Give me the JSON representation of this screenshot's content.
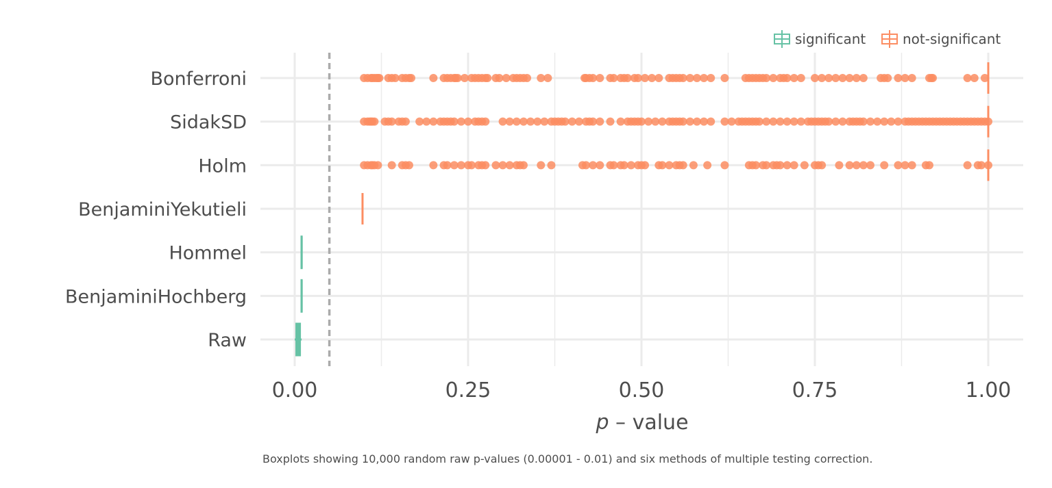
{
  "chart_data": {
    "type": "boxplot",
    "xlabel_italic": "p",
    "xlabel_rest": " – value",
    "xlim": [
      0,
      1
    ],
    "x_ticks": [
      {
        "value": 0,
        "label": "0.00"
      },
      {
        "value": 0.25,
        "label": "0.25"
      },
      {
        "value": 0.5,
        "label": "0.50"
      },
      {
        "value": 0.75,
        "label": "0.75"
      },
      {
        "value": 1,
        "label": "1.00"
      }
    ],
    "minor_ticks": [
      0.125,
      0.375,
      0.625,
      0.875
    ],
    "threshold": 0.05,
    "caption": "Boxplots showing 10,000 random raw p-values (0.00001 - 0.01) and six methods of multiple testing correction.",
    "legend": {
      "position": "top-right",
      "entries": [
        {
          "label": "significant",
          "color": "#66c2a5"
        },
        {
          "label": "not-significant",
          "color": "#fc8d62"
        }
      ]
    },
    "categories": [
      "Raw",
      "BenjaminiHochberg",
      "Hommel",
      "BenjaminiYekutieli",
      "Holm",
      "SidakSD",
      "Bonferroni"
    ],
    "boxes": [
      {
        "category": "Raw",
        "group": "significant",
        "q1": 0.0025,
        "median": 0.005,
        "q3": 0.0075,
        "whisker_low": 1e-05,
        "whisker_high": 0.01
      },
      {
        "category": "BenjaminiHochberg",
        "group": "significant",
        "q1": 0.0099,
        "median": 0.01,
        "q3": 0.01,
        "whisker_low": 0.0099,
        "whisker_high": 0.01
      },
      {
        "category": "Hommel",
        "group": "significant",
        "q1": 0.0099,
        "median": 0.01,
        "q3": 0.01,
        "whisker_low": 0.0099,
        "whisker_high": 0.01
      },
      {
        "category": "BenjaminiYekutieli",
        "group": "not-significant",
        "q1": 0.0978,
        "median": 0.0978,
        "q3": 0.0978,
        "whisker_low": 0.0978,
        "whisker_high": 0.0978
      },
      {
        "category": "Holm",
        "group": "not-significant",
        "q1": 1,
        "median": 1,
        "q3": 1,
        "whisker_low": 1,
        "whisker_high": 1
      },
      {
        "category": "SidakSD",
        "group": "not-significant",
        "q1": 1,
        "median": 1,
        "q3": 1,
        "whisker_low": 1,
        "whisker_high": 1
      },
      {
        "category": "Bonferroni",
        "group": "not-significant",
        "q1": 1,
        "median": 1,
        "q3": 1,
        "whisker_low": 1,
        "whisker_high": 1
      }
    ],
    "outliers": [
      {
        "category": "Bonferroni",
        "color": "#fc8d62",
        "values": [
          0.1,
          0.105,
          0.11,
          0.112,
          0.115,
          0.118,
          0.12,
          0.122,
          0.135,
          0.14,
          0.145,
          0.155,
          0.16,
          0.165,
          0.168,
          0.2,
          0.215,
          0.22,
          0.225,
          0.23,
          0.232,
          0.235,
          0.245,
          0.255,
          0.26,
          0.265,
          0.27,
          0.275,
          0.278,
          0.29,
          0.295,
          0.305,
          0.315,
          0.32,
          0.325,
          0.33,
          0.335,
          0.355,
          0.365,
          0.418,
          0.42,
          0.425,
          0.43,
          0.44,
          0.455,
          0.46,
          0.47,
          0.475,
          0.48,
          0.49,
          0.495,
          0.505,
          0.515,
          0.525,
          0.54,
          0.545,
          0.55,
          0.555,
          0.56,
          0.57,
          0.58,
          0.59,
          0.6,
          0.62,
          0.65,
          0.655,
          0.66,
          0.665,
          0.67,
          0.675,
          0.68,
          0.69,
          0.7,
          0.705,
          0.71,
          0.72,
          0.73,
          0.75,
          0.76,
          0.77,
          0.78,
          0.79,
          0.8,
          0.81,
          0.82,
          0.845,
          0.85,
          0.855,
          0.87,
          0.88,
          0.89,
          0.915,
          0.918,
          0.92,
          0.97,
          0.98,
          0.995
        ]
      },
      {
        "category": "SidakSD",
        "color": "#fc8d62",
        "values": [
          0.1,
          0.105,
          0.108,
          0.11,
          0.112,
          0.115,
          0.13,
          0.135,
          0.14,
          0.15,
          0.155,
          0.16,
          0.18,
          0.19,
          0.2,
          0.21,
          0.215,
          0.22,
          0.225,
          0.23,
          0.24,
          0.25,
          0.26,
          0.265,
          0.27,
          0.275,
          0.3,
          0.31,
          0.32,
          0.33,
          0.34,
          0.35,
          0.36,
          0.37,
          0.375,
          0.38,
          0.385,
          0.39,
          0.4,
          0.41,
          0.42,
          0.425,
          0.43,
          0.44,
          0.455,
          0.47,
          0.48,
          0.485,
          0.49,
          0.495,
          0.5,
          0.51,
          0.52,
          0.53,
          0.54,
          0.545,
          0.55,
          0.555,
          0.56,
          0.57,
          0.58,
          0.59,
          0.6,
          0.62,
          0.63,
          0.64,
          0.645,
          0.65,
          0.655,
          0.66,
          0.665,
          0.67,
          0.68,
          0.69,
          0.7,
          0.71,
          0.72,
          0.73,
          0.74,
          0.745,
          0.75,
          0.755,
          0.76,
          0.765,
          0.77,
          0.78,
          0.79,
          0.8,
          0.805,
          0.81,
          0.815,
          0.82,
          0.83,
          0.84,
          0.85,
          0.86,
          0.87,
          0.88,
          0.885,
          0.89,
          0.895,
          0.9,
          0.905,
          0.91,
          0.915,
          0.92,
          0.925,
          0.93,
          0.935,
          0.94,
          0.945,
          0.95,
          0.955,
          0.96,
          0.965,
          0.97,
          0.975,
          0.98,
          0.985,
          0.99,
          0.995,
          1
        ]
      },
      {
        "category": "Holm",
        "color": "#fc8d62",
        "values": [
          0.1,
          0.105,
          0.11,
          0.112,
          0.115,
          0.12,
          0.14,
          0.155,
          0.16,
          0.165,
          0.2,
          0.215,
          0.22,
          0.23,
          0.24,
          0.25,
          0.255,
          0.265,
          0.27,
          0.275,
          0.29,
          0.3,
          0.31,
          0.32,
          0.325,
          0.33,
          0.355,
          0.37,
          0.415,
          0.42,
          0.43,
          0.44,
          0.455,
          0.46,
          0.47,
          0.475,
          0.485,
          0.495,
          0.5,
          0.505,
          0.525,
          0.53,
          0.54,
          0.55,
          0.555,
          0.56,
          0.575,
          0.595,
          0.62,
          0.655,
          0.66,
          0.665,
          0.675,
          0.68,
          0.69,
          0.695,
          0.7,
          0.71,
          0.72,
          0.735,
          0.75,
          0.755,
          0.76,
          0.785,
          0.8,
          0.81,
          0.82,
          0.83,
          0.85,
          0.87,
          0.88,
          0.89,
          0.91,
          0.915,
          0.97,
          0.985,
          0.99,
          1
        ]
      }
    ]
  }
}
